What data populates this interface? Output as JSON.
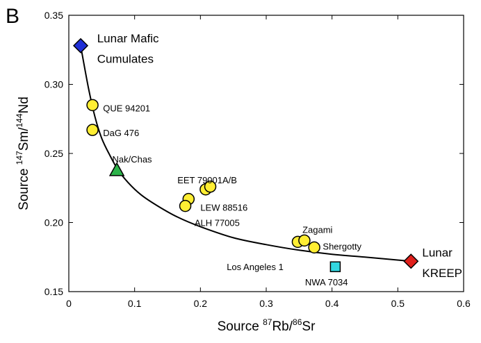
{
  "panel_label": "B",
  "chart_data": {
    "type": "scatter",
    "xlabel_parts": [
      "Source ",
      "87",
      "Rb/",
      "86",
      "Sr"
    ],
    "ylabel_parts": [
      "Source ",
      "147",
      "Sm/",
      "144",
      "Nd"
    ],
    "xlim": [
      0,
      0.6
    ],
    "ylim": [
      0.15,
      0.35
    ],
    "xticks": [
      "0",
      "0.1",
      "0.2",
      "0.3",
      "0.4",
      "0.5",
      "0.6"
    ],
    "yticks": [
      "0.15",
      "0.20",
      "0.25",
      "0.30",
      "0.35"
    ],
    "xtick_values": [
      0,
      0.1,
      0.2,
      0.3,
      0.4,
      0.5,
      0.6
    ],
    "ytick_values": [
      0.15,
      0.2,
      0.25,
      0.3,
      0.35
    ],
    "grid": false,
    "mixing_curve": [
      [
        0.018,
        0.328
      ],
      [
        0.03,
        0.297
      ],
      [
        0.04,
        0.276
      ],
      [
        0.05,
        0.261
      ],
      [
        0.062,
        0.249
      ],
      [
        0.075,
        0.238
      ],
      [
        0.09,
        0.229
      ],
      [
        0.11,
        0.22
      ],
      [
        0.135,
        0.212
      ],
      [
        0.165,
        0.204
      ],
      [
        0.2,
        0.197
      ],
      [
        0.25,
        0.189
      ],
      [
        0.3,
        0.184
      ],
      [
        0.35,
        0.18
      ],
      [
        0.4,
        0.177
      ],
      [
        0.45,
        0.175
      ],
      [
        0.52,
        0.172
      ]
    ],
    "colors": {
      "shergottite": "#ffee33",
      "nakhlite": "#2db34a",
      "nwa": "#33d6e0",
      "mafic": "#1f2fd6",
      "kreep": "#e0201c"
    },
    "points": [
      {
        "x": 0.018,
        "y": 0.328,
        "marker": "diamond",
        "color": "#1f2fd6"
      },
      {
        "x": 0.52,
        "y": 0.172,
        "marker": "diamond",
        "color": "#e0201c"
      },
      {
        "x": 0.036,
        "y": 0.285,
        "marker": "circle",
        "color": "#ffee33"
      },
      {
        "x": 0.036,
        "y": 0.267,
        "marker": "circle",
        "color": "#ffee33"
      },
      {
        "x": 0.073,
        "y": 0.238,
        "marker": "triangle",
        "color": "#2db34a"
      },
      {
        "x": 0.208,
        "y": 0.224,
        "marker": "circle",
        "color": "#ffee33"
      },
      {
        "x": 0.215,
        "y": 0.226,
        "marker": "circle",
        "color": "#ffee33"
      },
      {
        "x": 0.182,
        "y": 0.217,
        "marker": "circle",
        "color": "#ffee33"
      },
      {
        "x": 0.177,
        "y": 0.212,
        "marker": "circle",
        "color": "#ffee33"
      },
      {
        "x": 0.348,
        "y": 0.186,
        "marker": "circle",
        "color": "#ffee33"
      },
      {
        "x": 0.358,
        "y": 0.187,
        "marker": "circle",
        "color": "#ffee33"
      },
      {
        "x": 0.373,
        "y": 0.182,
        "marker": "circle",
        "color": "#ffee33"
      },
      {
        "x": 0.405,
        "y": 0.168,
        "marker": "square",
        "color": "#33d6e0"
      }
    ],
    "annotations": [
      {
        "text": "Lunar Mafic",
        "x": 0.043,
        "y": 0.333,
        "size": "big"
      },
      {
        "text": "Cumulates",
        "x": 0.043,
        "y": 0.318,
        "size": "big"
      },
      {
        "text": "QUE 94201",
        "x": 0.052,
        "y": 0.283,
        "size": "small"
      },
      {
        "text": "DaG 476",
        "x": 0.052,
        "y": 0.265,
        "size": "small"
      },
      {
        "text": "Nak/Chas",
        "x": 0.066,
        "y": 0.246,
        "size": "small"
      },
      {
        "text": "EET 79001A/B",
        "x": 0.165,
        "y": 0.231,
        "size": "small"
      },
      {
        "text": "LEW 88516",
        "x": 0.2,
        "y": 0.211,
        "size": "small"
      },
      {
        "text": "ALH 77005",
        "x": 0.191,
        "y": 0.2,
        "size": "small"
      },
      {
        "text": "Zagami",
        "x": 0.355,
        "y": 0.195,
        "size": "small"
      },
      {
        "text": "Shergotty",
        "x": 0.386,
        "y": 0.183,
        "size": "small"
      },
      {
        "text": "Los Angeles 1",
        "x": 0.24,
        "y": 0.168,
        "size": "small"
      },
      {
        "text": "NWA 7034",
        "x": 0.359,
        "y": 0.157,
        "size": "small"
      },
      {
        "text": "Lunar",
        "x": 0.537,
        "y": 0.178,
        "size": "big"
      },
      {
        "text": "KREEP",
        "x": 0.537,
        "y": 0.163,
        "size": "big"
      }
    ]
  }
}
